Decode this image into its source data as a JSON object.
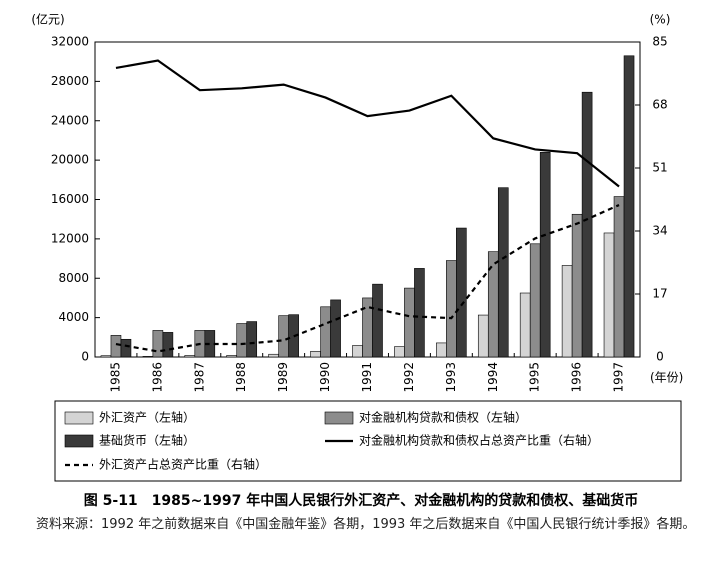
{
  "chart_data": {
    "type": "bar-line",
    "y_unit": "(亿元)",
    "y2_unit": "(%)",
    "x_unit": "(年份)",
    "categories": [
      "1985",
      "1986",
      "1987",
      "1988",
      "1989",
      "1990",
      "1991",
      "1992",
      "1993",
      "1994",
      "1995",
      "1996",
      "1997"
    ],
    "series": [
      {
        "name": "外汇资产（左轴）",
        "color": "#d4d4d4",
        "values": [
          130,
          60,
          160,
          170,
          280,
          580,
          1170,
          1050,
          1430,
          4260,
          6500,
          9300,
          12600
        ]
      },
      {
        "name": "对金融机构贷款和债权（左轴）",
        "color": "#8c8c8c",
        "values": [
          2200,
          2700,
          2700,
          3400,
          4200,
          5100,
          6000,
          7000,
          9800,
          10700,
          11500,
          14500,
          16300
        ]
      },
      {
        "name": "基础货币（左轴）",
        "color": "#3a3a3a",
        "values": [
          1800,
          2500,
          2700,
          3600,
          4300,
          5800,
          7400,
          9000,
          13100,
          17200,
          20800,
          26900,
          30600
        ]
      },
      {
        "name": "对金融机构贷款和债权占总资产比重（右轴）",
        "color": "#000000",
        "axis": "y2",
        "line_style": "solid",
        "values": [
          78,
          80,
          72,
          72.5,
          73.5,
          70,
          65,
          66.5,
          70.5,
          59,
          56,
          55,
          46
        ]
      },
      {
        "name": "外汇资产占总资产比重（右轴）",
        "color": "#000000",
        "axis": "y2",
        "line_style": "dash",
        "values": [
          3.5,
          1.5,
          3.5,
          3.5,
          4.5,
          9,
          13.5,
          11,
          10.5,
          25,
          32,
          36,
          41
        ]
      }
    ],
    "ylim": [
      0,
      32000
    ],
    "yticks": [
      0,
      4000,
      8000,
      12000,
      16000,
      20000,
      24000,
      28000,
      32000
    ],
    "y2lim": [
      0,
      85
    ],
    "y2ticks": [
      0,
      17,
      34,
      51,
      68,
      85
    ],
    "caption": "图 5-11　1985~1997 年中国人民银行外汇资产、对金融机构的贷款和债权、基础货币",
    "source": "资料来源：1992 年之前数据来自《中国金融年鉴》各期，1993 年之后数据来自《中国人民银行统计季报》各期。"
  }
}
